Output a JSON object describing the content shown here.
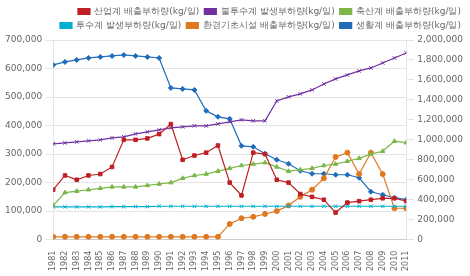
{
  "chart_data": {
    "type": "line",
    "x": [
      1981,
      1982,
      1983,
      1984,
      1985,
      1986,
      1987,
      1988,
      1989,
      1990,
      1991,
      1992,
      1993,
      1994,
      1995,
      1996,
      1997,
      1998,
      1999,
      2000,
      2001,
      2002,
      2003,
      2004,
      2005,
      2006,
      2007,
      2008,
      2009,
      2010,
      2011
    ],
    "xlim": [
      1981,
      2011
    ],
    "xticks": [
      1981,
      1982,
      1983,
      1984,
      1985,
      1986,
      1987,
      1988,
      1989,
      1990,
      1991,
      1992,
      1993,
      1994,
      1995,
      1996,
      1997,
      1998,
      1999,
      2000,
      2001,
      2002,
      2003,
      2004,
      2005,
      2006,
      2007,
      2008,
      2009,
      2010,
      2011
    ],
    "ylim": [
      0,
      700000
    ],
    "yticks": [
      0,
      {
        "value": 100000,
        "label": "100,000"
      },
      {
        "value": 200000,
        "label": "200,000"
      },
      {
        "value": 300000,
        "label": "300,000"
      },
      {
        "value": 400000,
        "label": "400,000"
      },
      {
        "value": 500000,
        "label": "500,000"
      },
      {
        "value": 600000,
        "label": "600,000"
      },
      {
        "value": 700000,
        "label": "700,000"
      }
    ],
    "y2lim": [
      0,
      2000000
    ],
    "y2ticks": [
      0,
      {
        "value": 200000,
        "label": "200,000"
      },
      {
        "value": 400000,
        "label": "400,000"
      },
      {
        "value": 600000,
        "label": "600,000"
      },
      {
        "value": 800000,
        "label": "800,000"
      },
      {
        "value": 1000000,
        "label": "1,000,000"
      },
      {
        "value": 1200000,
        "label": "1,200,000"
      },
      {
        "value": 1400000,
        "label": "1,400,000"
      },
      {
        "value": 1600000,
        "label": "1,600,000"
      },
      {
        "value": 1800000,
        "label": "1,800,000"
      },
      {
        "value": 2000000,
        "label": "2,000,000"
      }
    ],
    "grid": true,
    "legend": "upper right",
    "series": [
      {
        "name": "산업계 배출부하량(kg/일)",
        "color": "#bf1f24",
        "marker": "square",
        "values": [
          175000,
          225000,
          210000,
          225000,
          230000,
          255000,
          350000,
          350000,
          355000,
          370000,
          405000,
          280000,
          295000,
          305000,
          330000,
          200000,
          155000,
          305000,
          300000,
          210000,
          200000,
          160000,
          150000,
          140000,
          95000,
          130000,
          135000,
          140000,
          145000,
          145000,
          135000
        ]
      },
      {
        "name": "불투수계 발생부하량(kg/일)",
        "color": "#7030a0",
        "marker": "x",
        "axis": "y2",
        "values": [
          960000,
          970000,
          980000,
          990000,
          1000000,
          1020000,
          1030000,
          1060000,
          1080000,
          1100000,
          1120000,
          1130000,
          1140000,
          1140000,
          1160000,
          1180000,
          1200000,
          1190000,
          1190000,
          1390000,
          1430000,
          1460000,
          1500000,
          1560000,
          1610000,
          1650000,
          1690000,
          1720000,
          1770000,
          1820000,
          1870000
        ]
      },
      {
        "name": "축산계 배출부하량(kg/일)",
        "color": "#7ab648",
        "marker": "triangle",
        "values": [
          120000,
          165000,
          170000,
          175000,
          180000,
          185000,
          185000,
          185000,
          190000,
          195000,
          200000,
          215000,
          225000,
          230000,
          240000,
          250000,
          260000,
          265000,
          270000,
          255000,
          240000,
          245000,
          250000,
          260000,
          265000,
          275000,
          285000,
          300000,
          310000,
          345000,
          340000
        ]
      },
      {
        "name": "투수계 발생부하량(kg/일)",
        "color": "#00b0d0",
        "marker": "x",
        "values": [
          115000,
          115000,
          115000,
          115000,
          115000,
          116000,
          116000,
          116000,
          116000,
          117000,
          117000,
          117000,
          117000,
          117000,
          117000,
          117000,
          117000,
          117000,
          117000,
          117000,
          117000,
          117000,
          117000,
          117000,
          117000,
          117000,
          117000,
          117000,
          117000,
          117000,
          117000
        ]
      },
      {
        "name": "환경기초시설 배출부하량(kg/일)",
        "color": "#e07820",
        "marker": "circle",
        "values": [
          10000,
          10000,
          10000,
          10000,
          10000,
          10000,
          10000,
          10000,
          10000,
          10000,
          10000,
          10000,
          10000,
          10000,
          10000,
          55000,
          75000,
          80000,
          90000,
          100000,
          120000,
          150000,
          175000,
          215000,
          290000,
          305000,
          230000,
          305000,
          230000,
          110000,
          110000
        ]
      },
      {
        "name": "생활계 배출부하량(kg/일)",
        "color": "#1f6cbd",
        "marker": "diamond",
        "axis": "y2",
        "values": [
          1750000,
          1780000,
          1800000,
          1820000,
          1830000,
          1840000,
          1850000,
          1840000,
          1830000,
          1820000,
          1520000,
          1510000,
          1500000,
          1290000,
          1230000,
          1210000,
          940000,
          930000,
          860000,
          800000,
          760000,
          690000,
          660000,
          660000,
          650000,
          650000,
          620000,
          480000,
          450000,
          420000,
          400000
        ]
      }
    ]
  }
}
